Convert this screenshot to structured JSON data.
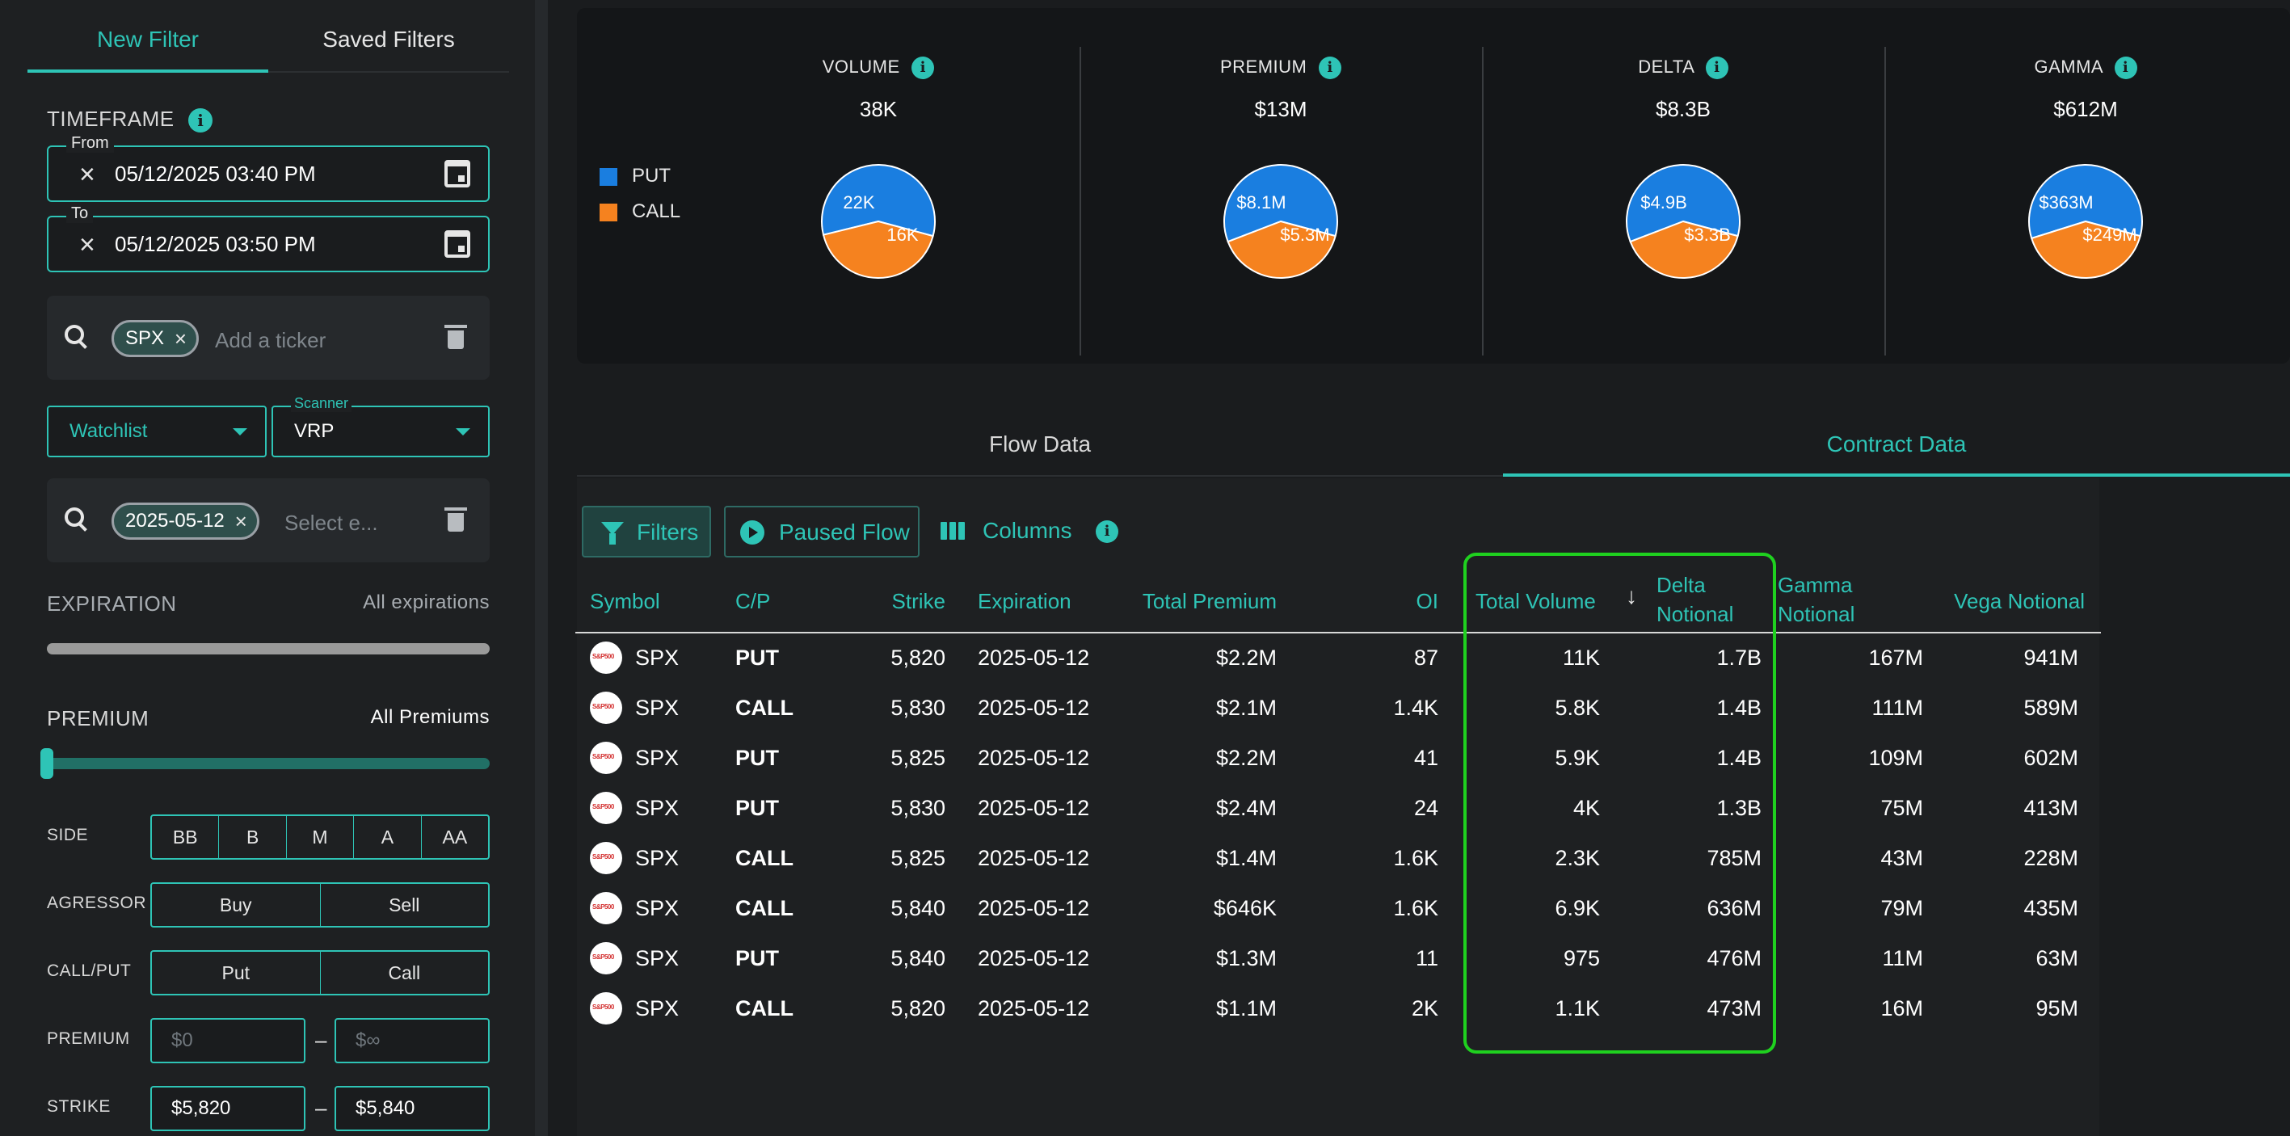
{
  "sidebar": {
    "tabs": {
      "new_filter": "New Filter",
      "saved_filters": "Saved Filters"
    },
    "timeframe_label": "TIMEFRAME",
    "info_glyph": "i",
    "from": {
      "legend": "From",
      "value": "05/12/2025 03:40 PM"
    },
    "to": {
      "legend": "To",
      "value": "05/12/2025 03:50 PM"
    },
    "ticker": {
      "chip": "SPX",
      "placeholder": "Add a ticker"
    },
    "watchlist": {
      "value": "Watchlist"
    },
    "scanner": {
      "label": "Scanner",
      "value": "VRP"
    },
    "expiry_box": {
      "chip": "2025-05-12",
      "placeholder": "Select e..."
    },
    "expiration": {
      "label": "EXPIRATION",
      "value": "All expirations"
    },
    "premium_slider": {
      "label": "PREMIUM",
      "value": "All Premiums"
    },
    "side": {
      "label": "SIDE",
      "options": [
        "BB",
        "B",
        "M",
        "A",
        "AA"
      ]
    },
    "agressor": {
      "label": "AGRESSOR",
      "options": [
        "Buy",
        "Sell"
      ]
    },
    "callput": {
      "label": "CALL/PUT",
      "options": [
        "Put",
        "Call"
      ]
    },
    "premium_range": {
      "label": "PREMIUM",
      "min_placeholder": "$0",
      "max_placeholder": "$∞",
      "dash": "–"
    },
    "strike_range": {
      "label": "STRIKE",
      "min": "$5,820",
      "max": "$5,840",
      "dash": "–"
    }
  },
  "summary": {
    "legend": [
      {
        "label": "PUT",
        "color": "#1a7ee0"
      },
      {
        "label": "CALL",
        "color": "#f5821f"
      }
    ],
    "metrics": [
      {
        "label": "VOLUME",
        "value": "38K",
        "put_label": "22K",
        "call_label": "16K",
        "put_share": 0.58
      },
      {
        "label": "PREMIUM",
        "value": "$13M",
        "put_label": "$8.1M",
        "call_label": "$5.3M",
        "put_share": 0.6
      },
      {
        "label": "DELTA",
        "value": "$8.3B",
        "put_label": "$4.9B",
        "call_label": "$3.3B",
        "put_share": 0.6
      },
      {
        "label": "GAMMA",
        "value": "$612M",
        "put_label": "$363M",
        "call_label": "$249M",
        "put_share": 0.59
      }
    ]
  },
  "main_tabs": {
    "flow": "Flow Data",
    "contract": "Contract Data"
  },
  "toolbar": {
    "filters": "Filters",
    "paused": "Paused Flow",
    "columns": "Columns",
    "info_glyph": "i"
  },
  "table": {
    "headers": {
      "symbol": "Symbol",
      "cp": "C/P",
      "strike": "Strike",
      "expiration": "Expiration",
      "total_premium": "Total Premium",
      "oi": "OI",
      "total_volume": "Total Volume",
      "delta_line1": "Delta",
      "delta_line2": "Notional",
      "gamma_line1": "Gamma",
      "gamma_line2": "Notional",
      "vega": "Vega Notional"
    },
    "sort_glyph": "↓",
    "rows": [
      {
        "symbol": "SPX",
        "cp": "PUT",
        "strike": "5,820",
        "exp": "2025-05-12",
        "premium": "$2.2M",
        "oi": "87",
        "volume": "11K",
        "delta": "1.7B",
        "gamma": "167M",
        "vega": "941M"
      },
      {
        "symbol": "SPX",
        "cp": "CALL",
        "strike": "5,830",
        "exp": "2025-05-12",
        "premium": "$2.1M",
        "oi": "1.4K",
        "volume": "5.8K",
        "delta": "1.4B",
        "gamma": "111M",
        "vega": "589M"
      },
      {
        "symbol": "SPX",
        "cp": "PUT",
        "strike": "5,825",
        "exp": "2025-05-12",
        "premium": "$2.2M",
        "oi": "41",
        "volume": "5.9K",
        "delta": "1.4B",
        "gamma": "109M",
        "vega": "602M"
      },
      {
        "symbol": "SPX",
        "cp": "PUT",
        "strike": "5,830",
        "exp": "2025-05-12",
        "premium": "$2.4M",
        "oi": "24",
        "volume": "4K",
        "delta": "1.3B",
        "gamma": "75M",
        "vega": "413M"
      },
      {
        "symbol": "SPX",
        "cp": "CALL",
        "strike": "5,825",
        "exp": "2025-05-12",
        "premium": "$1.4M",
        "oi": "1.6K",
        "volume": "2.3K",
        "delta": "785M",
        "gamma": "43M",
        "vega": "228M"
      },
      {
        "symbol": "SPX",
        "cp": "CALL",
        "strike": "5,840",
        "exp": "2025-05-12",
        "premium": "$646K",
        "oi": "1.6K",
        "volume": "6.9K",
        "delta": "636M",
        "gamma": "79M",
        "vega": "435M"
      },
      {
        "symbol": "SPX",
        "cp": "PUT",
        "strike": "5,840",
        "exp": "2025-05-12",
        "premium": "$1.3M",
        "oi": "11",
        "volume": "975",
        "delta": "476M",
        "gamma": "11M",
        "vega": "63M"
      },
      {
        "symbol": "SPX",
        "cp": "CALL",
        "strike": "5,820",
        "exp": "2025-05-12",
        "premium": "$1.1M",
        "oi": "2K",
        "volume": "1.1K",
        "delta": "473M",
        "gamma": "16M",
        "vega": "95M"
      }
    ]
  },
  "colors": {
    "accent": "#2ec4b6",
    "put": "#1a7ee0",
    "call": "#f5821f",
    "highlight": "#1fd11f"
  }
}
